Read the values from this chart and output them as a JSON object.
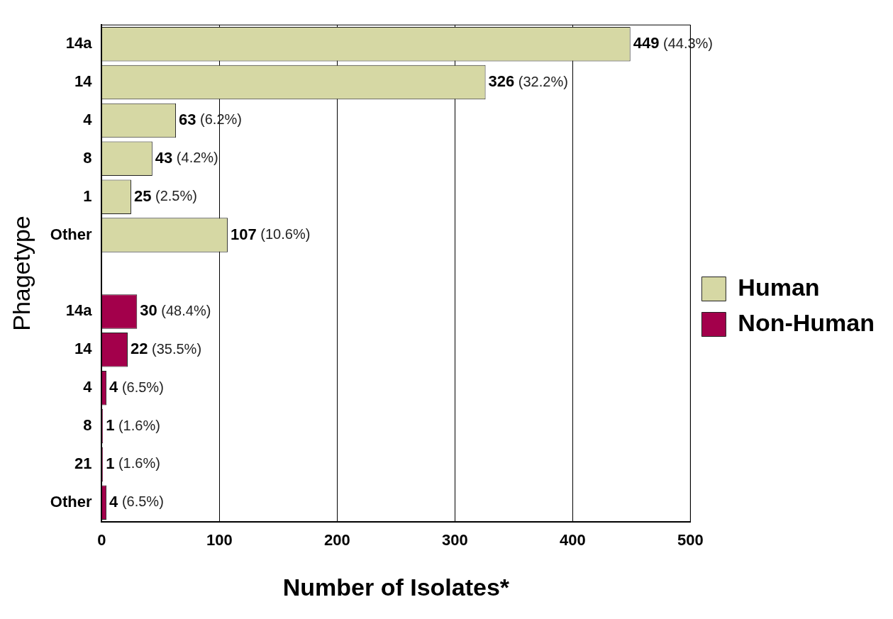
{
  "chart_data": {
    "type": "bar",
    "orientation": "horizontal",
    "stacked": true,
    "xlabel": "Number of Isolates*",
    "ylabel": "Phagetype",
    "categories": [
      "14a",
      "14",
      "4",
      "8",
      "1",
      "Other",
      null,
      "14a",
      "14",
      "4",
      "8",
      "21",
      "Other"
    ],
    "series": [
      {
        "name": "Human",
        "color": "#d6d8a4",
        "values": [
          449,
          326,
          63,
          43,
          25,
          107,
          null,
          null,
          null,
          null,
          null,
          null,
          null
        ],
        "value_labels": [
          "449 (44.3%)",
          "326 (32.2%)",
          "63 (6.2%)",
          "43 (4.2%)",
          "25 (2.5%)",
          "107 (10.6%)",
          null,
          null,
          null,
          null,
          null,
          null,
          null
        ]
      },
      {
        "name": "Non-Human",
        "color": "#a3004b",
        "values": [
          null,
          null,
          null,
          null,
          null,
          null,
          null,
          30,
          22,
          4,
          1,
          1,
          4
        ],
        "value_labels": [
          null,
          null,
          null,
          null,
          null,
          null,
          null,
          "30 (48.4%)",
          "22 (35.5%)",
          "4 (6.5%)",
          "1 (1.6%)",
          "1 (1.6%)",
          "4 (6.5%)"
        ]
      }
    ],
    "xlim": [
      0,
      500
    ],
    "xticks": [
      0,
      100,
      200,
      300,
      400,
      500
    ],
    "grid": "x",
    "legend": "right"
  }
}
